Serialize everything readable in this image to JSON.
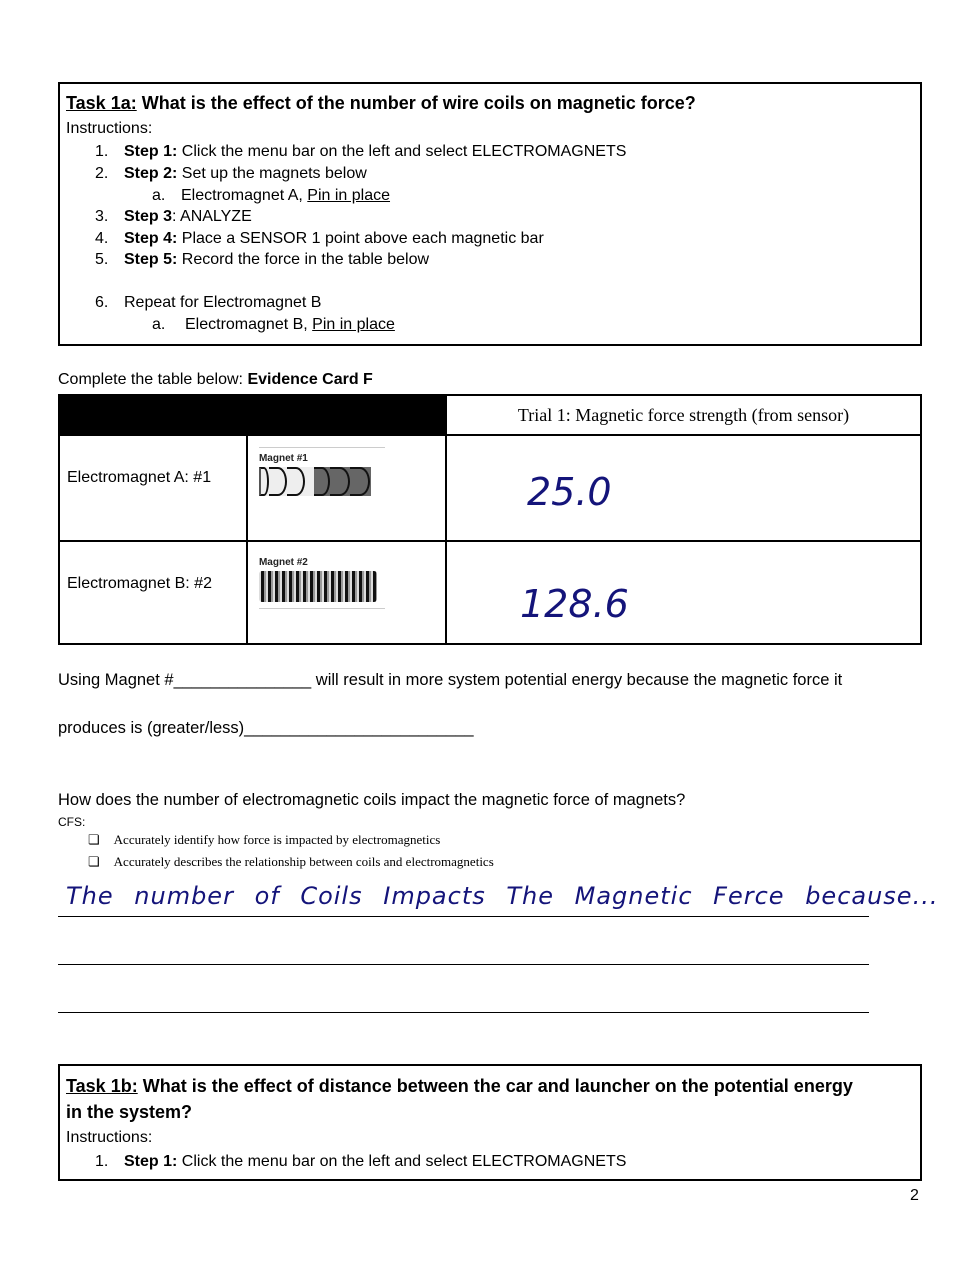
{
  "task1a": {
    "label": "Task 1a:",
    "question": " What is the effect of the number of wire coils on magnetic force?",
    "instructions_label": "Instructions:",
    "steps": [
      {
        "num": "1.",
        "bold": "Step 1:",
        "text": " Click the menu bar on the left and select ELECTROMAGNETS"
      },
      {
        "num": "2.",
        "bold": "Step 2:",
        "text": " Set up the magnets below"
      },
      {
        "num": "a.",
        "text": "Electromagnet A, ",
        "link": "Pin in place"
      },
      {
        "num": "3.",
        "bold": "Step 3",
        "text": ": ANALYZE"
      },
      {
        "num": "4.",
        "bold": "Step 4:",
        "text": " Place a SENSOR 1 point above each magnetic bar"
      },
      {
        "num": "5.",
        "bold": "Step 5:",
        "text": " Record the force in the table below"
      },
      {
        "num": "6.",
        "text": "Repeat for Electromagnet B"
      },
      {
        "num": "a.",
        "text": "Electromagnet B, ",
        "link": "Pin in place"
      }
    ]
  },
  "table_intro": {
    "text": "Complete the table below: ",
    "bold": "Evidence Card F"
  },
  "table": {
    "header": "Trial 1: Magnetic force strength (from sensor)",
    "rows": [
      {
        "label": "Electromagnet A: #1",
        "image_caption": "Magnet #1",
        "value": "25.0"
      },
      {
        "label": "Electromagnet B: #2",
        "image_caption": "Magnet #2",
        "value": "128.6"
      }
    ]
  },
  "sentence1": "Using Magnet #_______________ will result in more system potential energy because the magnetic force it",
  "sentence2": "produces is (greater/less)_________________________",
  "question": "How does the number of electromagnetic coils impact the magnetic force of magnets?",
  "cfs_label": "CFS:",
  "criteria": [
    "Accurately identify how force is impacted by electromagnetics",
    "Accurately describes the relationship between coils and electromagnetics"
  ],
  "handwritten_answer": "The number of Coils Impacts The Magnetic Ferce because...",
  "task1b": {
    "label": "Task 1b:",
    "question_line1": " What is the effect of distance between the car and launcher on the potential energy",
    "question_line2": "in the system?",
    "instructions_label": "Instructions:",
    "step": {
      "num": "1.",
      "bold": "Step 1:",
      "text": " Click the menu bar on the left and select ELECTROMAGNETS"
    }
  },
  "page_number": "2",
  "colors": {
    "handwriting": "#14147a",
    "header_fill": "#000000"
  }
}
